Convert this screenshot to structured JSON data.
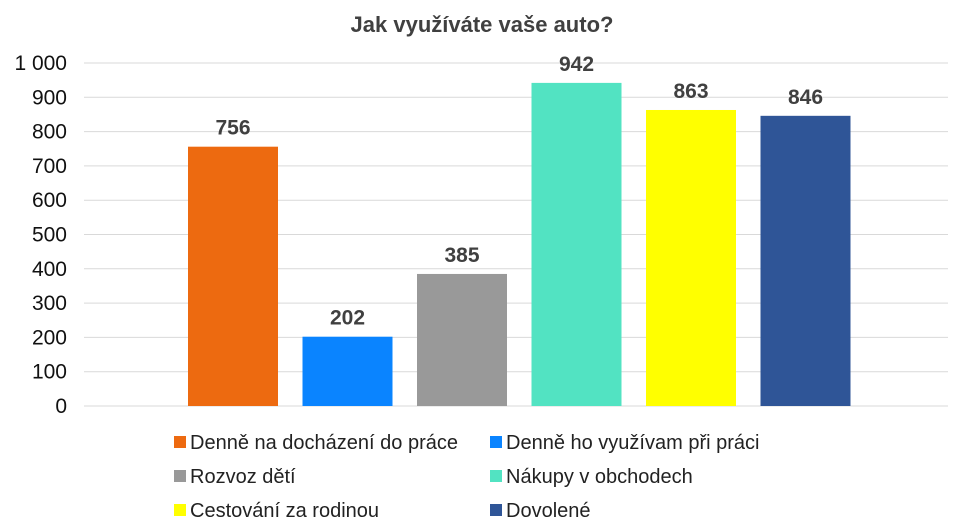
{
  "chart_data": {
    "type": "bar",
    "title": "Jak využíváte vaše auto?",
    "categories": [
      "Denně na docházení do práce",
      "Denně ho využívam při práci",
      "Rozvoz dětí",
      "Nákupy v obchodech",
      "Cestování za rodinou",
      "Dovolené"
    ],
    "values": [
      756,
      202,
      385,
      942,
      863,
      846
    ],
    "colors": [
      "#ED6A10",
      "#0A84FF",
      "#999999",
      "#52E3C2",
      "#FFFF00",
      "#2F5597"
    ],
    "data_labels": [
      "756",
      "202",
      "385",
      "942",
      "863",
      "846"
    ],
    "ylim": [
      0,
      1000
    ],
    "yticks": [
      0,
      100,
      200,
      300,
      400,
      500,
      600,
      700,
      800,
      900,
      1000
    ],
    "ytick_labels": [
      "0",
      "100",
      "200",
      "300",
      "400",
      "500",
      "600",
      "700",
      "800",
      "900",
      "1 000"
    ],
    "xlabel": "",
    "ylabel": "",
    "grid": true,
    "legend_position": "bottom"
  }
}
